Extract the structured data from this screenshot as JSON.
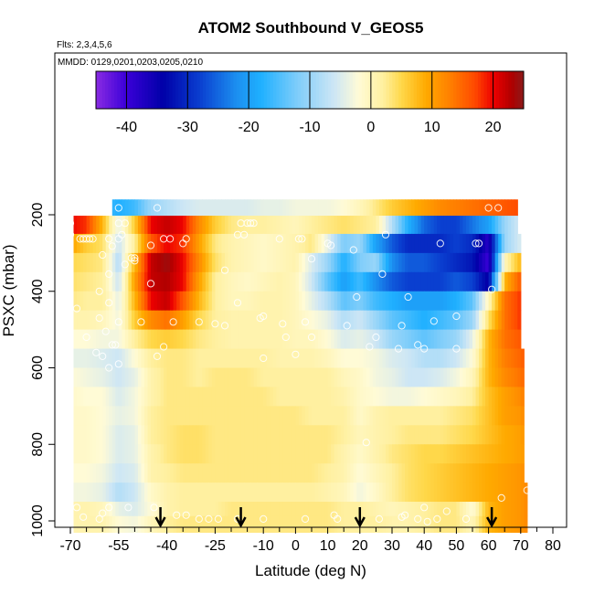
{
  "chart_data": {
    "type": "heatmap",
    "title": "ATOM2 Southbound V_GEOS5",
    "flights_text": "Flts: 2,3,4,5,6",
    "dates_text": "MMDD: 0129,0201,0203,0205,0210",
    "xlabel": "Latitude (deg N)",
    "ylabel": "PSXC (mbar)",
    "xlim": [
      -70,
      85
    ],
    "ylim": [
      1030,
      0
    ],
    "y_reversed": true,
    "x_ticks": [
      -70,
      -55,
      -40,
      -25,
      -10,
      0,
      10,
      20,
      30,
      40,
      50,
      60,
      70,
      80
    ],
    "x_tick_labels": [
      "-70",
      "-55",
      "-40",
      "-25",
      "-10",
      "0",
      "10",
      "20",
      "30",
      "40",
      "50",
      "60",
      "70",
      "80"
    ],
    "x_minor_ticks": [
      -65,
      -60,
      -50,
      -45,
      -35,
      -30,
      -20,
      -15,
      -5,
      5,
      15,
      25,
      35,
      45,
      55,
      65,
      75
    ],
    "y_ticks": [
      200,
      400,
      600,
      800,
      1000
    ],
    "y_tick_labels": [
      "200",
      "400",
      "600",
      "800",
      "1000"
    ],
    "colorbar": {
      "min": -45,
      "max": 25,
      "ticks": [
        -40,
        -30,
        -20,
        -10,
        0,
        10,
        20
      ],
      "tick_labels": [
        "-40",
        "-30",
        "-20",
        "-10",
        "0",
        "10",
        "20"
      ],
      "stops": [
        {
          "v": -45,
          "c": "#8a2be2"
        },
        {
          "v": -40,
          "c": "#3a00d8"
        },
        {
          "v": -34,
          "c": "#0000a8"
        },
        {
          "v": -28,
          "c": "#0a3fd0"
        },
        {
          "v": -22,
          "c": "#1c8ff0"
        },
        {
          "v": -18,
          "c": "#1fb0ff"
        },
        {
          "v": -12,
          "c": "#7fcdfa"
        },
        {
          "v": -6,
          "c": "#cde6f5"
        },
        {
          "v": -2,
          "c": "#fffbd6"
        },
        {
          "v": 2,
          "c": "#fff0a0"
        },
        {
          "v": 5,
          "c": "#ffd84a"
        },
        {
          "v": 9,
          "c": "#ffaa00"
        },
        {
          "v": 13,
          "c": "#ff7f00"
        },
        {
          "v": 17,
          "c": "#ff4a00"
        },
        {
          "v": 20,
          "c": "#ee0000"
        },
        {
          "v": 23,
          "c": "#b00000"
        },
        {
          "v": 25,
          "c": "#8b1a1a"
        }
      ]
    },
    "pressure_levels": [
      180,
      225,
      275,
      325,
      375,
      425,
      475,
      525,
      575,
      625,
      675,
      725,
      775,
      825,
      875,
      925,
      975,
      1000
    ],
    "level_bounds": [
      {
        "p": 180,
        "x": [
          -57,
          69
        ]
      },
      {
        "p": 225,
        "x": [
          -69,
          69
        ]
      },
      {
        "p": 275,
        "x": [
          -69,
          70
        ]
      },
      {
        "p": 325,
        "x": [
          -69,
          70
        ]
      },
      {
        "p": 375,
        "x": [
          -69,
          70
        ]
      },
      {
        "p": 425,
        "x": [
          -69,
          70
        ]
      },
      {
        "p": 475,
        "x": [
          -69,
          70
        ]
      },
      {
        "p": 525,
        "x": [
          -69,
          70
        ]
      },
      {
        "p": 575,
        "x": [
          -69,
          71
        ]
      },
      {
        "p": 625,
        "x": [
          -69,
          71
        ]
      },
      {
        "p": 675,
        "x": [
          -69,
          71
        ]
      },
      {
        "p": 725,
        "x": [
          -69,
          71
        ]
      },
      {
        "p": 775,
        "x": [
          -69,
          71
        ]
      },
      {
        "p": 825,
        "x": [
          -69,
          71
        ]
      },
      {
        "p": 875,
        "x": [
          -69,
          71
        ]
      },
      {
        "p": 925,
        "x": [
          -69,
          72
        ]
      },
      {
        "p": 975,
        "x": [
          -69,
          72
        ]
      },
      {
        "p": 1000,
        "x": [
          -69,
          72
        ]
      }
    ],
    "lat_knots": [
      -70,
      -65,
      -60,
      -55,
      -50,
      -45,
      -40,
      -35,
      -30,
      -25,
      -20,
      -15,
      -10,
      -5,
      0,
      5,
      10,
      15,
      20,
      25,
      30,
      35,
      40,
      45,
      50,
      55,
      60,
      65,
      70,
      72
    ],
    "v_rows": [
      [
        -15,
        -15,
        -15,
        -18,
        -16,
        -10,
        -8,
        -6,
        -5,
        -5,
        -5,
        -5,
        -4,
        -4,
        -3,
        -3,
        -3,
        -2,
        0,
        3,
        6,
        8,
        10,
        12,
        13,
        14,
        15,
        16,
        17,
        17
      ],
      [
        20,
        18,
        8,
        -4,
        6,
        20,
        22,
        20,
        12,
        6,
        3,
        2,
        2,
        1,
        0,
        2,
        3,
        4,
        3,
        2,
        -8,
        -18,
        -25,
        -28,
        -28,
        -24,
        -20,
        -10,
        -5,
        -5
      ],
      [
        10,
        6,
        4,
        -6,
        2,
        16,
        20,
        18,
        10,
        3,
        1,
        0,
        -1,
        0,
        1,
        3,
        -4,
        -12,
        -10,
        -20,
        -26,
        -30,
        -30,
        -30,
        -28,
        -30,
        -38,
        -10,
        -5,
        -5
      ],
      [
        5,
        4,
        3,
        -8,
        8,
        22,
        24,
        20,
        12,
        4,
        1,
        0,
        -1,
        0,
        1,
        -5,
        -10,
        -18,
        -12,
        -10,
        -22,
        -26,
        -26,
        -28,
        -30,
        -32,
        -40,
        0,
        8,
        8
      ],
      [
        4,
        3,
        2,
        -6,
        10,
        22,
        23,
        20,
        10,
        2,
        0,
        -1,
        0,
        1,
        0,
        -6,
        -14,
        -20,
        -16,
        -22,
        -26,
        -28,
        -28,
        -28,
        -26,
        -28,
        -35,
        8,
        16,
        18
      ],
      [
        3,
        2,
        2,
        -4,
        8,
        20,
        22,
        16,
        8,
        2,
        0,
        0,
        1,
        1,
        0,
        -4,
        -8,
        -14,
        -12,
        -16,
        -18,
        -20,
        -20,
        -20,
        -18,
        -14,
        0,
        14,
        18,
        20
      ],
      [
        1,
        1,
        0,
        -3,
        6,
        12,
        14,
        10,
        5,
        2,
        1,
        1,
        1,
        1,
        0,
        -2,
        -4,
        -8,
        -6,
        -10,
        -14,
        -16,
        -18,
        -16,
        -14,
        -10,
        4,
        14,
        18,
        20
      ],
      [
        -2,
        -2,
        -3,
        -3,
        2,
        5,
        6,
        5,
        3,
        2,
        1,
        1,
        1,
        1,
        0,
        0,
        -2,
        -5,
        -4,
        -6,
        -10,
        -12,
        -14,
        -12,
        -10,
        -4,
        8,
        14,
        16,
        17
      ],
      [
        -4,
        -4,
        -5,
        -6,
        -2,
        2,
        3,
        3,
        2,
        2,
        2,
        2,
        2,
        1,
        1,
        1,
        0,
        -2,
        -2,
        -3,
        -5,
        -6,
        -8,
        -8,
        -6,
        -2,
        8,
        13,
        15,
        16
      ],
      [
        -2,
        -3,
        -4,
        -6,
        -4,
        1,
        3,
        3,
        2,
        3,
        3,
        3,
        2,
        2,
        2,
        2,
        2,
        0,
        -1,
        -3,
        -4,
        -6,
        -6,
        -5,
        -3,
        0,
        8,
        12,
        14,
        15
      ],
      [
        -1,
        -2,
        -2,
        -5,
        -3,
        1,
        3,
        3,
        3,
        3,
        3,
        3,
        3,
        2,
        2,
        2,
        2,
        1,
        -1,
        -2,
        -3,
        -3,
        -2,
        -1,
        0,
        2,
        7,
        10,
        12,
        14
      ],
      [
        -1,
        -1,
        -2,
        -4,
        -3,
        2,
        3,
        3,
        3,
        3,
        3,
        3,
        3,
        3,
        3,
        2,
        2,
        2,
        -1,
        1,
        2,
        2,
        2,
        2,
        3,
        4,
        7,
        10,
        11,
        13
      ],
      [
        -1,
        -1,
        -2,
        -5,
        -4,
        2,
        3,
        4,
        4,
        3,
        3,
        3,
        3,
        3,
        3,
        3,
        3,
        2,
        0,
        1,
        2,
        3,
        3,
        3,
        4,
        5,
        7,
        9,
        10,
        12
      ],
      [
        -1,
        -1,
        -2,
        -5,
        -4,
        1,
        3,
        4,
        4,
        3,
        3,
        3,
        3,
        3,
        3,
        3,
        3,
        1,
        -1,
        1,
        3,
        4,
        5,
        5,
        6,
        7,
        8,
        9,
        10,
        11
      ],
      [
        -2,
        -2,
        -3,
        -6,
        -5,
        1,
        2,
        3,
        3,
        3,
        3,
        3,
        3,
        3,
        3,
        3,
        2,
        1,
        -2,
        0,
        2,
        4,
        5,
        6,
        7,
        8,
        9,
        10,
        11,
        12
      ],
      [
        -3,
        -3,
        -4,
        -8,
        -6,
        -1,
        1,
        2,
        2,
        2,
        2,
        2,
        2,
        2,
        2,
        2,
        1,
        0,
        -3,
        -1,
        2,
        4,
        5,
        6,
        7,
        8,
        9,
        10,
        11,
        12
      ],
      [
        1,
        1,
        0,
        -4,
        -5,
        -2,
        1,
        2,
        2,
        2,
        3,
        3,
        3,
        3,
        3,
        3,
        3,
        2,
        2,
        1,
        0,
        1,
        2,
        3,
        3,
        -2,
        8,
        10,
        11,
        12
      ],
      [
        1,
        1,
        1,
        -2,
        -3,
        0,
        2,
        3,
        3,
        3,
        3,
        3,
        3,
        3,
        3,
        3,
        3,
        2,
        2,
        2,
        1,
        1,
        2,
        3,
        3,
        0,
        8,
        10,
        11,
        12
      ]
    ],
    "sample_points": [
      [
        -55,
        182
      ],
      [
        -43,
        182
      ],
      [
        60,
        182
      ],
      [
        63,
        182
      ],
      [
        -70,
        222
      ],
      [
        -55,
        222
      ],
      [
        -53,
        222
      ],
      [
        -17,
        222
      ],
      [
        -15,
        222
      ],
      [
        -14,
        222
      ],
      [
        -13,
        222
      ],
      [
        -70,
        252
      ],
      [
        -67,
        263
      ],
      [
        -66,
        263
      ],
      [
        -65,
        263
      ],
      [
        -64,
        263
      ],
      [
        -63,
        263
      ],
      [
        -58,
        263
      ],
      [
        -55,
        263
      ],
      [
        -54,
        252
      ],
      [
        -41,
        263
      ],
      [
        -39,
        263
      ],
      [
        -34,
        263
      ],
      [
        -18,
        252
      ],
      [
        -16,
        252
      ],
      [
        -5,
        263
      ],
      [
        1,
        263
      ],
      [
        2,
        263
      ],
      [
        28,
        252
      ],
      [
        45,
        275
      ],
      [
        56,
        275
      ],
      [
        57,
        275
      ],
      [
        -57,
        282
      ],
      [
        -45,
        280
      ],
      [
        -35,
        275
      ],
      [
        10,
        275
      ],
      [
        11,
        280
      ],
      [
        18,
        292
      ],
      [
        -60,
        305
      ],
      [
        -50,
        313
      ],
      [
        -51,
        313
      ],
      [
        -50,
        320
      ],
      [
        -53,
        330
      ],
      [
        5,
        315
      ],
      [
        -58,
        355
      ],
      [
        -45,
        380
      ],
      [
        -22,
        345
      ],
      [
        27,
        355
      ],
      [
        -61,
        400
      ],
      [
        -58,
        430
      ],
      [
        -18,
        430
      ],
      [
        -10,
        465
      ],
      [
        19,
        415
      ],
      [
        35,
        415
      ],
      [
        61,
        395
      ],
      [
        -68,
        445
      ],
      [
        -61,
        470
      ],
      [
        -55,
        480
      ],
      [
        -59,
        505
      ],
      [
        -48,
        480
      ],
      [
        -38,
        480
      ],
      [
        -30,
        480
      ],
      [
        -25,
        485
      ],
      [
        -22,
        490
      ],
      [
        -11,
        470
      ],
      [
        -4,
        485
      ],
      [
        3,
        480
      ],
      [
        16,
        490
      ],
      [
        33,
        490
      ],
      [
        43,
        478
      ],
      [
        50,
        465
      ],
      [
        -65,
        520
      ],
      [
        -57,
        540
      ],
      [
        -56,
        540
      ],
      [
        -41,
        545
      ],
      [
        -3,
        520
      ],
      [
        5,
        520
      ],
      [
        25,
        520
      ],
      [
        38,
        540
      ],
      [
        -62,
        560
      ],
      [
        -60,
        570
      ],
      [
        -55,
        590
      ],
      [
        -43,
        570
      ],
      [
        -10,
        575
      ],
      [
        23,
        545
      ],
      [
        32,
        550
      ],
      [
        40,
        550
      ],
      [
        50,
        550
      ],
      [
        -58,
        600
      ],
      [
        0,
        565
      ],
      [
        22,
        795
      ],
      [
        64,
        940
      ],
      [
        72,
        920
      ],
      [
        -68,
        965
      ],
      [
        -58,
        965
      ],
      [
        -52,
        965
      ],
      [
        -44,
        965
      ],
      [
        -37,
        985
      ],
      [
        -34,
        985
      ],
      [
        -18,
        995
      ],
      [
        12,
        985
      ],
      [
        34,
        985
      ],
      [
        40,
        965
      ],
      [
        47,
        975
      ],
      [
        -66,
        990
      ],
      [
        -60,
        980
      ],
      [
        -61,
        995
      ],
      [
        -30,
        995
      ],
      [
        -27,
        995
      ],
      [
        -24,
        995
      ],
      [
        -10,
        995
      ],
      [
        3,
        995
      ],
      [
        13,
        995
      ],
      [
        26,
        995
      ],
      [
        33,
        990
      ],
      [
        38,
        995
      ],
      [
        41,
        1002
      ],
      [
        44,
        995
      ],
      [
        53,
        995
      ]
    ],
    "arrow_latitudes": [
      -42,
      -17,
      20,
      61
    ]
  }
}
